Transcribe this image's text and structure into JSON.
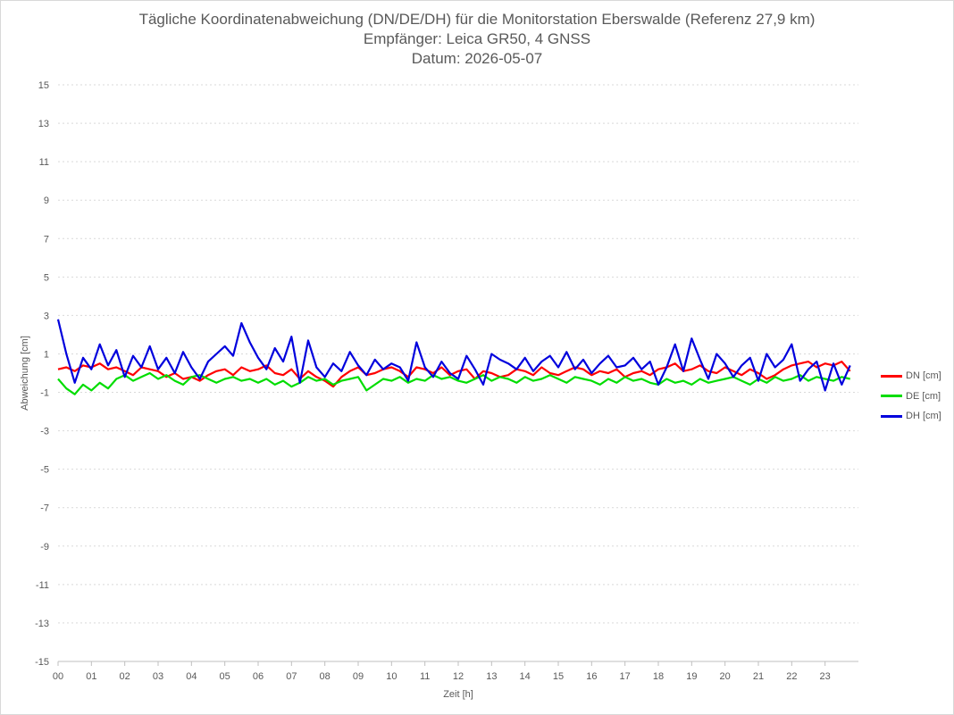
{
  "chart_data": {
    "type": "line",
    "title": "Tägliche Koordinatenabweichung (DN/DE/DH) für die Monitorstation Eberswalde (Referenz 27,9 km)",
    "subtitle": "Empfänger: Leica GR50, 4 GNSS",
    "date_line": "Datum: 2026-05-07",
    "xlabel": "Zeit [h]",
    "ylabel": "Abweichung [cm]",
    "x_ticks": [
      "00",
      "01",
      "02",
      "03",
      "04",
      "05",
      "06",
      "07",
      "08",
      "09",
      "10",
      "11",
      "12",
      "13",
      "14",
      "15",
      "16",
      "17",
      "18",
      "19",
      "20",
      "21",
      "22",
      "23"
    ],
    "xlim": [
      0,
      24
    ],
    "ylim": [
      -15,
      15
    ],
    "y_ticks": [
      -15,
      -13,
      -11,
      -9,
      -7,
      -5,
      -3,
      -1,
      1,
      3,
      5,
      7,
      9,
      11,
      13,
      15
    ],
    "grid": true,
    "legend_position": "right",
    "series": [
      {
        "name": "DN [cm]",
        "color": "#ff0000",
        "x": [
          0,
          0.25,
          0.5,
          0.75,
          1,
          1.25,
          1.5,
          1.75,
          2,
          2.25,
          2.5,
          2.75,
          3,
          3.25,
          3.5,
          3.75,
          4,
          4.25,
          4.5,
          4.75,
          5,
          5.25,
          5.5,
          5.75,
          6,
          6.25,
          6.5,
          6.75,
          7,
          7.25,
          7.5,
          7.75,
          8,
          8.25,
          8.5,
          8.75,
          9,
          9.25,
          9.5,
          9.75,
          10,
          10.25,
          10.5,
          10.75,
          11,
          11.25,
          11.5,
          11.75,
          12,
          12.25,
          12.5,
          12.75,
          13,
          13.25,
          13.5,
          13.75,
          14,
          14.25,
          14.5,
          14.75,
          15,
          15.25,
          15.5,
          15.75,
          16,
          16.25,
          16.5,
          16.75,
          17,
          17.25,
          17.5,
          17.75,
          18,
          18.25,
          18.5,
          18.75,
          19,
          19.25,
          19.5,
          19.75,
          20,
          20.25,
          20.5,
          20.75,
          21,
          21.25,
          21.5,
          21.75,
          22,
          22.25,
          22.5,
          22.75,
          23,
          23.25,
          23.5,
          23.75
        ],
        "values": [
          0.2,
          0.3,
          0.1,
          0.4,
          0.3,
          0.5,
          0.2,
          0.3,
          0.1,
          -0.1,
          0.3,
          0.2,
          0.1,
          -0.2,
          0.0,
          -0.3,
          -0.2,
          -0.4,
          -0.1,
          0.1,
          0.2,
          -0.1,
          0.3,
          0.1,
          0.2,
          0.4,
          0.0,
          -0.1,
          0.2,
          -0.3,
          0.1,
          -0.2,
          -0.4,
          -0.7,
          -0.2,
          0.1,
          0.3,
          -0.1,
          0.0,
          0.2,
          0.3,
          0.1,
          -0.2,
          0.3,
          0.2,
          0.0,
          0.3,
          -0.1,
          0.1,
          0.2,
          -0.3,
          0.1,
          0.0,
          -0.2,
          -0.1,
          0.2,
          0.1,
          -0.1,
          0.3,
          0.0,
          -0.1,
          0.1,
          0.3,
          0.2,
          -0.1,
          0.1,
          0.0,
          0.2,
          -0.2,
          0.0,
          0.1,
          -0.1,
          0.2,
          0.3,
          0.5,
          0.1,
          0.2,
          0.4,
          0.1,
          0.0,
          0.3,
          0.1,
          -0.1,
          0.2,
          0.0,
          -0.3,
          -0.1,
          0.2,
          0.4,
          0.5,
          0.6,
          0.3,
          0.5,
          0.4,
          0.6,
          0.1
        ]
      },
      {
        "name": "DE [cm]",
        "color": "#00dd00",
        "x": [
          0,
          0.25,
          0.5,
          0.75,
          1,
          1.25,
          1.5,
          1.75,
          2,
          2.25,
          2.5,
          2.75,
          3,
          3.25,
          3.5,
          3.75,
          4,
          4.25,
          4.5,
          4.75,
          5,
          5.25,
          5.5,
          5.75,
          6,
          6.25,
          6.5,
          6.75,
          7,
          7.25,
          7.5,
          7.75,
          8,
          8.25,
          8.5,
          8.75,
          9,
          9.25,
          9.5,
          9.75,
          10,
          10.25,
          10.5,
          10.75,
          11,
          11.25,
          11.5,
          11.75,
          12,
          12.25,
          12.5,
          12.75,
          13,
          13.25,
          13.5,
          13.75,
          14,
          14.25,
          14.5,
          14.75,
          15,
          15.25,
          15.5,
          15.75,
          16,
          16.25,
          16.5,
          16.75,
          17,
          17.25,
          17.5,
          17.75,
          18,
          18.25,
          18.5,
          18.75,
          19,
          19.25,
          19.5,
          19.75,
          20,
          20.25,
          20.5,
          20.75,
          21,
          21.25,
          21.5,
          21.75,
          22,
          22.25,
          22.5,
          22.75,
          23,
          23.25,
          23.5,
          23.75
        ],
        "values": [
          -0.3,
          -0.8,
          -1.1,
          -0.6,
          -0.9,
          -0.5,
          -0.8,
          -0.3,
          -0.1,
          -0.4,
          -0.2,
          0.0,
          -0.3,
          -0.1,
          -0.4,
          -0.6,
          -0.2,
          -0.1,
          -0.3,
          -0.5,
          -0.3,
          -0.2,
          -0.4,
          -0.3,
          -0.5,
          -0.3,
          -0.6,
          -0.4,
          -0.7,
          -0.5,
          -0.2,
          -0.4,
          -0.3,
          -0.6,
          -0.4,
          -0.3,
          -0.2,
          -0.9,
          -0.6,
          -0.3,
          -0.4,
          -0.2,
          -0.5,
          -0.3,
          -0.4,
          -0.1,
          -0.3,
          -0.2,
          -0.4,
          -0.5,
          -0.3,
          -0.1,
          -0.4,
          -0.2,
          -0.3,
          -0.5,
          -0.2,
          -0.4,
          -0.3,
          -0.1,
          -0.3,
          -0.5,
          -0.2,
          -0.3,
          -0.4,
          -0.6,
          -0.3,
          -0.5,
          -0.2,
          -0.4,
          -0.3,
          -0.5,
          -0.6,
          -0.3,
          -0.5,
          -0.4,
          -0.6,
          -0.3,
          -0.5,
          -0.4,
          -0.3,
          -0.2,
          -0.4,
          -0.6,
          -0.3,
          -0.5,
          -0.2,
          -0.4,
          -0.3,
          -0.1,
          -0.4,
          -0.2,
          -0.3,
          -0.4,
          -0.2,
          -0.3
        ]
      },
      {
        "name": "DH [cm]",
        "color": "#0000dd",
        "x": [
          0,
          0.25,
          0.5,
          0.75,
          1,
          1.25,
          1.5,
          1.75,
          2,
          2.25,
          2.5,
          2.75,
          3,
          3.25,
          3.5,
          3.75,
          4,
          4.25,
          4.5,
          4.75,
          5,
          5.25,
          5.5,
          5.75,
          6,
          6.25,
          6.5,
          6.75,
          7,
          7.25,
          7.5,
          7.75,
          8,
          8.25,
          8.5,
          8.75,
          9,
          9.25,
          9.5,
          9.75,
          10,
          10.25,
          10.5,
          10.75,
          11,
          11.25,
          11.5,
          11.75,
          12,
          12.25,
          12.5,
          12.75,
          13,
          13.25,
          13.5,
          13.75,
          14,
          14.25,
          14.5,
          14.75,
          15,
          15.25,
          15.5,
          15.75,
          16,
          16.25,
          16.5,
          16.75,
          17,
          17.25,
          17.5,
          17.75,
          18,
          18.25,
          18.5,
          18.75,
          19,
          19.25,
          19.5,
          19.75,
          20,
          20.25,
          20.5,
          20.75,
          21,
          21.25,
          21.5,
          21.75,
          22,
          22.25,
          22.5,
          22.75,
          23,
          23.25,
          23.5,
          23.75
        ],
        "values": [
          2.8,
          1.0,
          -0.5,
          0.8,
          0.2,
          1.5,
          0.4,
          1.2,
          -0.2,
          0.9,
          0.3,
          1.4,
          0.2,
          0.8,
          0.0,
          1.1,
          0.3,
          -0.3,
          0.6,
          1.0,
          1.4,
          0.9,
          2.6,
          1.6,
          0.8,
          0.2,
          1.3,
          0.6,
          1.9,
          -0.5,
          1.7,
          0.3,
          -0.2,
          0.5,
          0.1,
          1.1,
          0.4,
          -0.1,
          0.7,
          0.2,
          0.5,
          0.3,
          -0.4,
          1.6,
          0.3,
          -0.2,
          0.6,
          0.0,
          -0.3,
          0.9,
          0.2,
          -0.6,
          1.0,
          0.7,
          0.5,
          0.2,
          0.8,
          0.1,
          0.6,
          0.9,
          0.3,
          1.1,
          0.2,
          0.7,
          0.0,
          0.5,
          0.9,
          0.3,
          0.4,
          0.8,
          0.2,
          0.6,
          -0.6,
          0.3,
          1.5,
          0.1,
          1.8,
          0.7,
          -0.3,
          1.0,
          0.5,
          -0.2,
          0.4,
          0.8,
          -0.4,
          1.0,
          0.3,
          0.7,
          1.5,
          -0.4,
          0.2,
          0.6,
          -0.9,
          0.5,
          -0.6,
          0.4
        ]
      }
    ]
  }
}
